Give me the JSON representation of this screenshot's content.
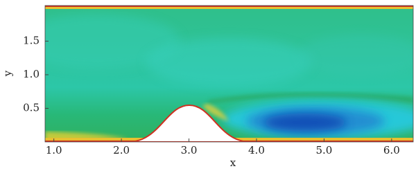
{
  "chart_data": {
    "type": "field",
    "x_label": "x",
    "y_label": "y",
    "xlim": [
      0.87,
      6.32
    ],
    "ylim": [
      0,
      2.03
    ],
    "xticks": [
      {
        "value": 1,
        "label": "1.0"
      },
      {
        "value": 2,
        "label": "2.0"
      },
      {
        "value": 3,
        "label": "3.0"
      },
      {
        "value": 4,
        "label": "4.0"
      },
      {
        "value": 5,
        "label": "5.0"
      },
      {
        "value": 6,
        "label": "6.0"
      }
    ],
    "yticks": [
      0.5,
      {
        "value": 1,
        "label": "1.0"
      },
      1.5
    ]
  }
}
